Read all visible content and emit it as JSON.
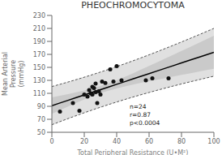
{
  "chart_data": {
    "type": "scatter",
    "title": "PHEOCHROMOCYTOMA",
    "x_label": "Total Peripheral Resistance (U•M²)",
    "y_label": "Mean Arterial\nPressure\n(mmHg)",
    "annotation": "n=24\nr=0.87\np<0.0004",
    "xlim": [
      0,
      100
    ],
    "ylim": [
      50,
      230
    ],
    "xticks": [
      0,
      20,
      40,
      60,
      80,
      100
    ],
    "yticks": [
      50,
      70,
      90,
      110,
      130,
      150,
      170,
      190,
      210,
      230
    ],
    "grid": false,
    "series": [
      {
        "type": "band",
        "color": "#cccccc",
        "line_style": "dashed",
        "x": [
          0,
          10,
          20,
          30,
          40,
          50,
          60,
          70,
          80,
          90,
          100
        ],
        "lower": [
          61.604,
          71.039,
          80.041,
          88.574,
          96.62,
          104.19,
          111.314,
          118.041,
          124.427,
          130.526,
          136.387
        ],
        "upper": [
          120.408,
          127.415,
          134.855,
          142.764,
          151.16,
          160.032,
          169.348,
          179.063,
          189.119,
          199.462,
          210.043
        ]
      },
      {
        "type": "band",
        "color": "#bbbbbb",
        "x": [
          0,
          10,
          20,
          30,
          40,
          50,
          60,
          70,
          80,
          90,
          100
        ],
        "lower": [
          78.358,
          89.737,
          100.621,
          110.226,
          117.637,
          123.447,
          128.606,
          133.507,
          138.288,
          143.005,
          147.684
        ],
        "upper": [
          103.654,
          108.717,
          114.275,
          121.112,
          130.143,
          140.774,
          152.056,
          163.597,
          175.258,
          186.983,
          198.746
        ]
      },
      {
        "type": "line",
        "color": "#000000",
        "x": [
          0,
          10,
          20,
          30,
          40,
          50,
          60,
          70,
          80,
          90,
          100
        ],
        "values": [
          91.006,
          99.227,
          107.448,
          115.669,
          123.89,
          132.111,
          140.331,
          148.552,
          156.773,
          164.994,
          173.215
        ]
      },
      {
        "type": "scatter",
        "color": "#111111",
        "x": [
          5,
          13,
          17,
          20,
          22,
          23,
          24,
          25,
          25,
          26,
          27,
          27,
          28,
          29,
          30,
          31,
          33,
          36,
          38,
          40,
          43,
          58,
          62,
          72
        ],
        "values": [
          82,
          95,
          83,
          108,
          105,
          115,
          110,
          120,
          108,
          118,
          125,
          112,
          95,
          113,
          108,
          128,
          126,
          147,
          128,
          152,
          130,
          130,
          133,
          133
        ]
      }
    ]
  }
}
